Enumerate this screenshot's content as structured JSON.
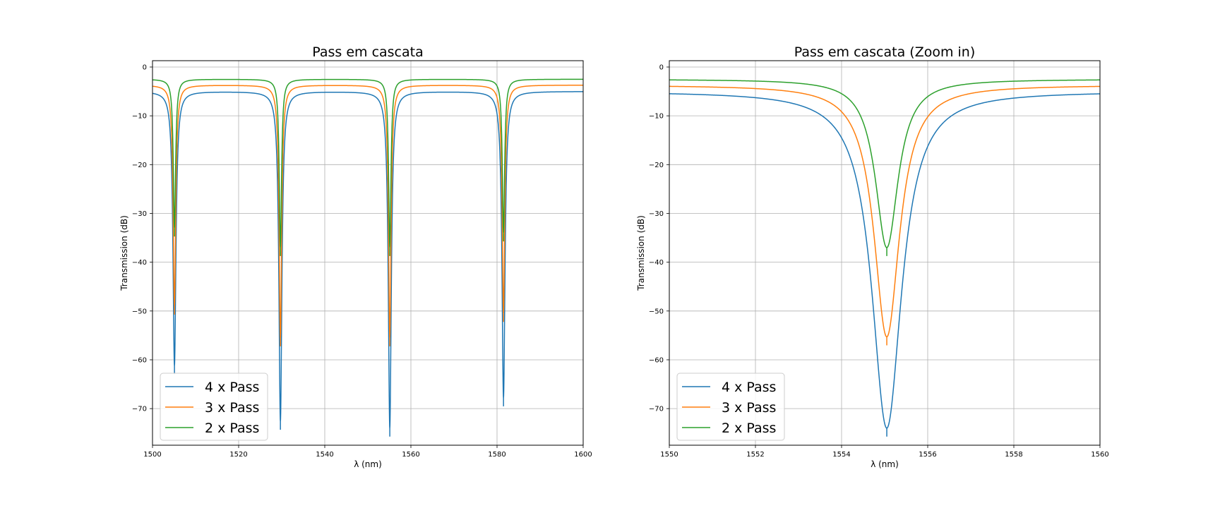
{
  "chart_data": [
    {
      "type": "line",
      "title": "Pass em cascata",
      "xlabel": "λ (nm)",
      "ylabel": "Transmission (dB)",
      "xlim": [
        1500,
        1600
      ],
      "ylim": [
        -77.5,
        1.3
      ],
      "xticks": [
        1500,
        1520,
        1540,
        1560,
        1580,
        1600
      ],
      "xtick_labels": [
        "1500",
        "1520",
        "1540",
        "1560",
        "1580",
        "1600"
      ],
      "yticks": [
        0,
        -10,
        -20,
        -30,
        -40,
        -50,
        -60,
        -70
      ],
      "ytick_labels": [
        "0",
        "−10",
        "−20",
        "−30",
        "−40",
        "−50",
        "−60",
        "−70"
      ],
      "grid": true,
      "legend": "lower-left",
      "resonances": [
        {
          "center": 1505.1,
          "depths": [
            -61.2,
            -49.0,
            -33.0
          ]
        },
        {
          "center": 1529.7,
          "depths": [
            -72.6,
            -55.5,
            -37.0
          ]
        },
        {
          "center": 1555.1,
          "depths": [
            -74.0,
            -55.5,
            -37.0
          ]
        },
        {
          "center": 1581.5,
          "depths": [
            -67.8,
            -50.5,
            -34.0
          ]
        }
      ],
      "series": [
        {
          "name": "4 x Pass",
          "color": "#1f77b4",
          "baseline": -5.0
        },
        {
          "name": "3 x Pass",
          "color": "#ff7f0e",
          "baseline": -3.7
        },
        {
          "name": "2 x Pass",
          "color": "#2ca02c",
          "baseline": -2.5
        }
      ]
    },
    {
      "type": "line",
      "title": "Pass em cascata (Zoom in)",
      "xlabel": "λ (nm)",
      "ylabel": "Transmission (dB)",
      "xlim": [
        1550,
        1560
      ],
      "ylim": [
        -77.5,
        1.3
      ],
      "xticks": [
        1550,
        1552,
        1554,
        1556,
        1558,
        1560
      ],
      "xtick_labels": [
        "1550",
        "1552",
        "1554",
        "1556",
        "1558",
        "1560"
      ],
      "yticks": [
        0,
        -10,
        -20,
        -30,
        -40,
        -50,
        -60,
        -70
      ],
      "ytick_labels": [
        "0",
        "−10",
        "−20",
        "−30",
        "−40",
        "−50",
        "−60",
        "−70"
      ],
      "grid": true,
      "legend": "lower-left",
      "resonances": [
        {
          "center": 1555.05,
          "depths": [
            -74.0,
            -55.3,
            -37.0
          ]
        }
      ],
      "series": [
        {
          "name": "4 x Pass",
          "color": "#1f77b4",
          "baseline": -5.0
        },
        {
          "name": "3 x Pass",
          "color": "#ff7f0e",
          "baseline": -3.7
        },
        {
          "name": "2 x Pass",
          "color": "#2ca02c",
          "baseline": -2.5
        }
      ]
    }
  ]
}
